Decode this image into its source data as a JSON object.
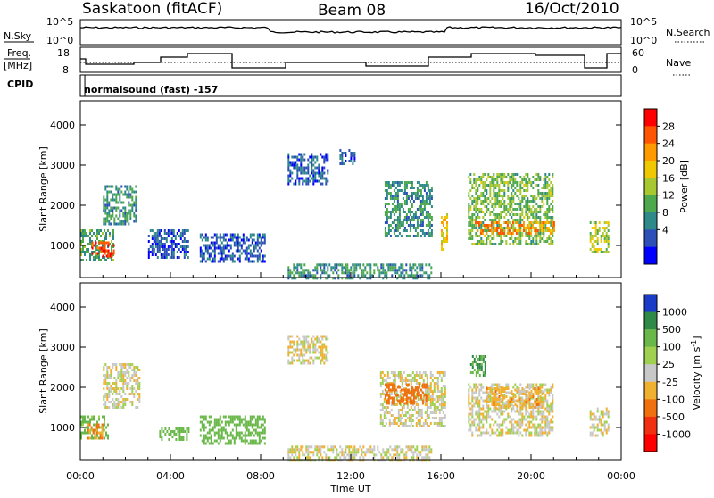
{
  "header": {
    "station": "Saskatoon (fitACF)",
    "beam": "Beam 08",
    "date": "16/Oct/2010"
  },
  "noise_panel": {
    "left_label": "N.Sky",
    "right_label": "N.Search",
    "left_ticks": [
      "10^5",
      "10^0"
    ],
    "right_ticks": [
      "10^5",
      "10^0"
    ]
  },
  "freq_panel": {
    "left_label_line1": "Freq.",
    "left_label_line2": "[MHz]",
    "right_label": "Nave",
    "left_ticks": [
      "18",
      "8"
    ],
    "right_ticks": [
      "60",
      "0"
    ]
  },
  "cpid_panel": {
    "label": "CPID",
    "text": "normalsound (fast) -157"
  },
  "power_colorbar": {
    "label": "Power [dB]",
    "ticks": [
      "28",
      "24",
      "20",
      "16",
      "12",
      "8",
      "4"
    ],
    "colors": [
      "#ff0000",
      "#ff5500",
      "#ff9900",
      "#f0c800",
      "#a8c832",
      "#4ea84e",
      "#2e8a8a",
      "#2c50b8",
      "#0000ff"
    ]
  },
  "velocity_colorbar": {
    "label": "Velocity [m s",
    "label_sup": "-1",
    "label_end": "]",
    "ticks": [
      "1000",
      "500",
      "100",
      "25",
      "-25",
      "-100",
      "-500",
      "-1000"
    ],
    "colors": [
      "#1a3cc8",
      "#2f8a4a",
      "#6ab84a",
      "#a0d050",
      "#c8c8c8",
      "#f0b030",
      "#f07010",
      "#f03010",
      "#ff0000"
    ]
  },
  "chart_data": [
    {
      "type": "heatmap",
      "panel": "power",
      "ylabel": "Slant Range [km]",
      "ylim": [
        200,
        4600
      ],
      "yticks": [
        "4000",
        "3000",
        "2000",
        "1000"
      ],
      "xlim": [
        0,
        24
      ],
      "xticks": [
        "00:00",
        "04:00",
        "08:00",
        "12:00",
        "16:00",
        "20:00",
        "00:00"
      ],
      "regions": [
        {
          "t0": 0.0,
          "t1": 1.5,
          "r0": 600,
          "r1": 1400,
          "db": 12
        },
        {
          "t0": 0.5,
          "t1": 1.5,
          "r0": 700,
          "r1": 1100,
          "db": 28
        },
        {
          "t0": 1.0,
          "t1": 2.5,
          "r0": 1500,
          "r1": 2500,
          "db": 10
        },
        {
          "t0": 3.0,
          "t1": 4.8,
          "r0": 700,
          "r1": 1400,
          "db": 6
        },
        {
          "t0": 5.3,
          "t1": 8.2,
          "r0": 600,
          "r1": 1300,
          "db": 6
        },
        {
          "t0": 9.2,
          "t1": 15.6,
          "r0": 200,
          "r1": 550,
          "db": 10
        },
        {
          "t0": 9.2,
          "t1": 11.0,
          "r0": 2500,
          "r1": 3300,
          "db": 6
        },
        {
          "t0": 11.5,
          "t1": 12.2,
          "r0": 3000,
          "r1": 3400,
          "db": 6
        },
        {
          "t0": 13.5,
          "t1": 15.6,
          "r0": 1200,
          "r1": 2600,
          "db": 10
        },
        {
          "t0": 16.0,
          "t1": 16.3,
          "r0": 900,
          "r1": 1800,
          "db": 20
        },
        {
          "t0": 17.2,
          "t1": 21.0,
          "r0": 1000,
          "r1": 2800,
          "db": 14
        },
        {
          "t0": 17.5,
          "t1": 21.0,
          "r0": 1300,
          "r1": 1600,
          "db": 24
        },
        {
          "t0": 22.6,
          "t1": 23.4,
          "r0": 800,
          "r1": 1600,
          "db": 16
        }
      ]
    },
    {
      "type": "heatmap",
      "panel": "velocity",
      "ylabel": "Slant Range [km]",
      "ylim": [
        200,
        4600
      ],
      "yticks": [
        "4000",
        "3000",
        "2000",
        "1000"
      ],
      "xlim": [
        0,
        24
      ],
      "xticks": [
        "00:00",
        "04:00",
        "08:00",
        "12:00",
        "16:00",
        "20:00",
        "00:00"
      ],
      "xlabel": "Time UT",
      "regions": [
        {
          "t0": 0.0,
          "t1": 1.2,
          "r0": 700,
          "r1": 1300,
          "v": 100
        },
        {
          "t0": 0.3,
          "t1": 1.0,
          "r0": 750,
          "r1": 1100,
          "v": -100
        },
        {
          "t0": 1.0,
          "t1": 2.6,
          "r0": 1500,
          "r1": 2600,
          "v": 0
        },
        {
          "t0": 3.5,
          "t1": 4.8,
          "r0": 700,
          "r1": 1000,
          "v": 200
        },
        {
          "t0": 5.3,
          "t1": 8.2,
          "r0": 600,
          "r1": 1300,
          "v": 150
        },
        {
          "t0": 9.2,
          "t1": 15.6,
          "r0": 200,
          "r1": 550,
          "v": 0
        },
        {
          "t0": 9.2,
          "t1": 11.0,
          "r0": 2600,
          "r1": 3300,
          "v": 0
        },
        {
          "t0": 13.3,
          "t1": 16.2,
          "r0": 1000,
          "r1": 2400,
          "v": 0
        },
        {
          "t0": 13.5,
          "t1": 15.4,
          "r0": 1600,
          "r1": 2100,
          "v": -200
        },
        {
          "t0": 17.2,
          "t1": 21.0,
          "r0": 800,
          "r1": 2100,
          "v": 0
        },
        {
          "t0": 18.0,
          "t1": 20.5,
          "r0": 1500,
          "r1": 2000,
          "v": -60
        },
        {
          "t0": 17.3,
          "t1": 18.0,
          "r0": 2300,
          "r1": 2800,
          "v": 300
        },
        {
          "t0": 22.6,
          "t1": 23.4,
          "r0": 800,
          "r1": 1500,
          "v": 0
        }
      ]
    }
  ]
}
